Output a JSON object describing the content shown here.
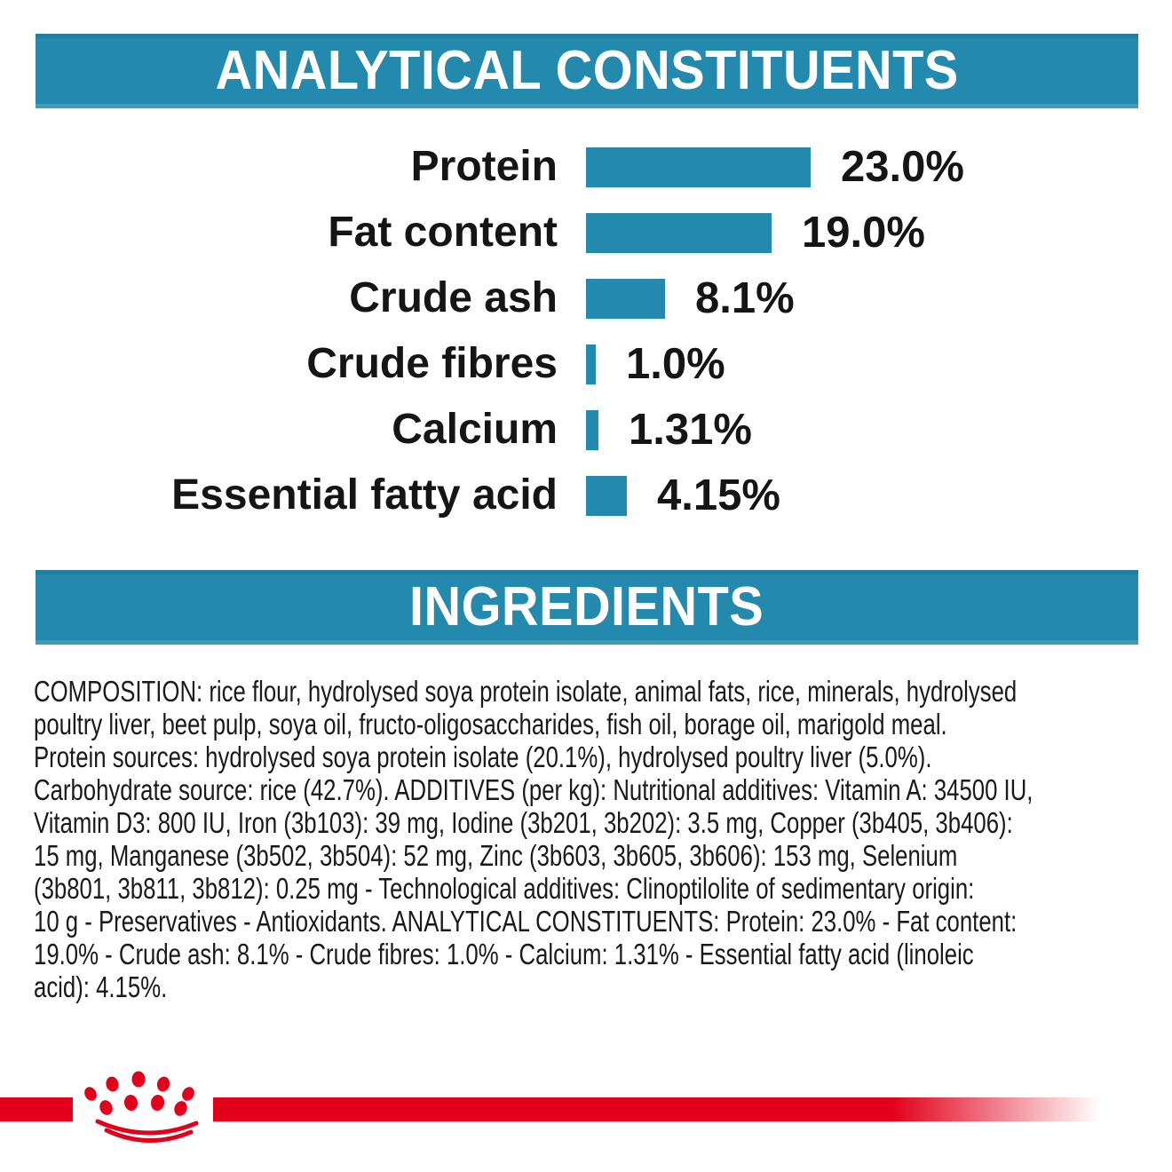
{
  "colors": {
    "teal": "#2389AD",
    "red": "#E2001A",
    "text": "#151515",
    "background": "#FFFFFF"
  },
  "analytical_header": {
    "title": "ANALYTICAL CONSTITUENTS"
  },
  "chart_data": {
    "type": "bar",
    "orientation": "horizontal",
    "title": "ANALYTICAL CONSTITUENTS",
    "categories": [
      "Protein",
      "Fat content",
      "Crude ash",
      "Crude fibres",
      "Calcium",
      "Essential fatty acid"
    ],
    "values": [
      23.0,
      19.0,
      8.1,
      1.0,
      1.31,
      4.15
    ],
    "value_labels": [
      "23.0%",
      "19.0%",
      "8.1%",
      "1.0%",
      "1.31%",
      "4.15%"
    ],
    "unit": "%",
    "xlim": [
      0,
      25
    ],
    "bar_color": "#2389AD",
    "grid": "off",
    "value_label_position": "right-of-bar",
    "category_label_position": "left-of-bar"
  },
  "ingredients_header": {
    "title": "INGREDIENTS"
  },
  "ingredients": {
    "lines": [
      "COMPOSITION: rice flour, hydrolysed soya protein isolate, animal fats, rice, minerals, hydrolysed",
      "poultry liver, beet pulp, soya oil, fructo-oligosaccharides, fish oil, borage oil, marigold meal.",
      "Protein sources: hydrolysed soya protein isolate (20.1%), hydrolysed poultry liver (5.0%).",
      "Carbohydrate source: rice (42.7%). ADDITIVES (per kg): Nutritional additives: Vitamin A: 34500 IU,",
      "Vitamin D3: 800 IU, Iron (3b103): 39 mg, Iodine (3b201, 3b202): 3.5 mg, Copper (3b405, 3b406):",
      "15 mg, Manganese (3b502, 3b504): 52 mg, Zinc (3b603, 3b605, 3b606): 153 mg, Selenium",
      "(3b801, 3b811, 3b812): 0.25 mg - Technological additives: Clinoptilolite of sedimentary origin:",
      "10 g - Preservatives - Antioxidants. ANALYTICAL CONSTITUENTS: Protein: 23.0% - Fat content:",
      "19.0% - Crude ash: 8.1% - Crude fibres: 1.0% - Calcium: 1.31% - Essential fatty acid (linoleic",
      "acid): 4.15%."
    ]
  },
  "footer": {
    "logo": "royal-canin-crown"
  }
}
